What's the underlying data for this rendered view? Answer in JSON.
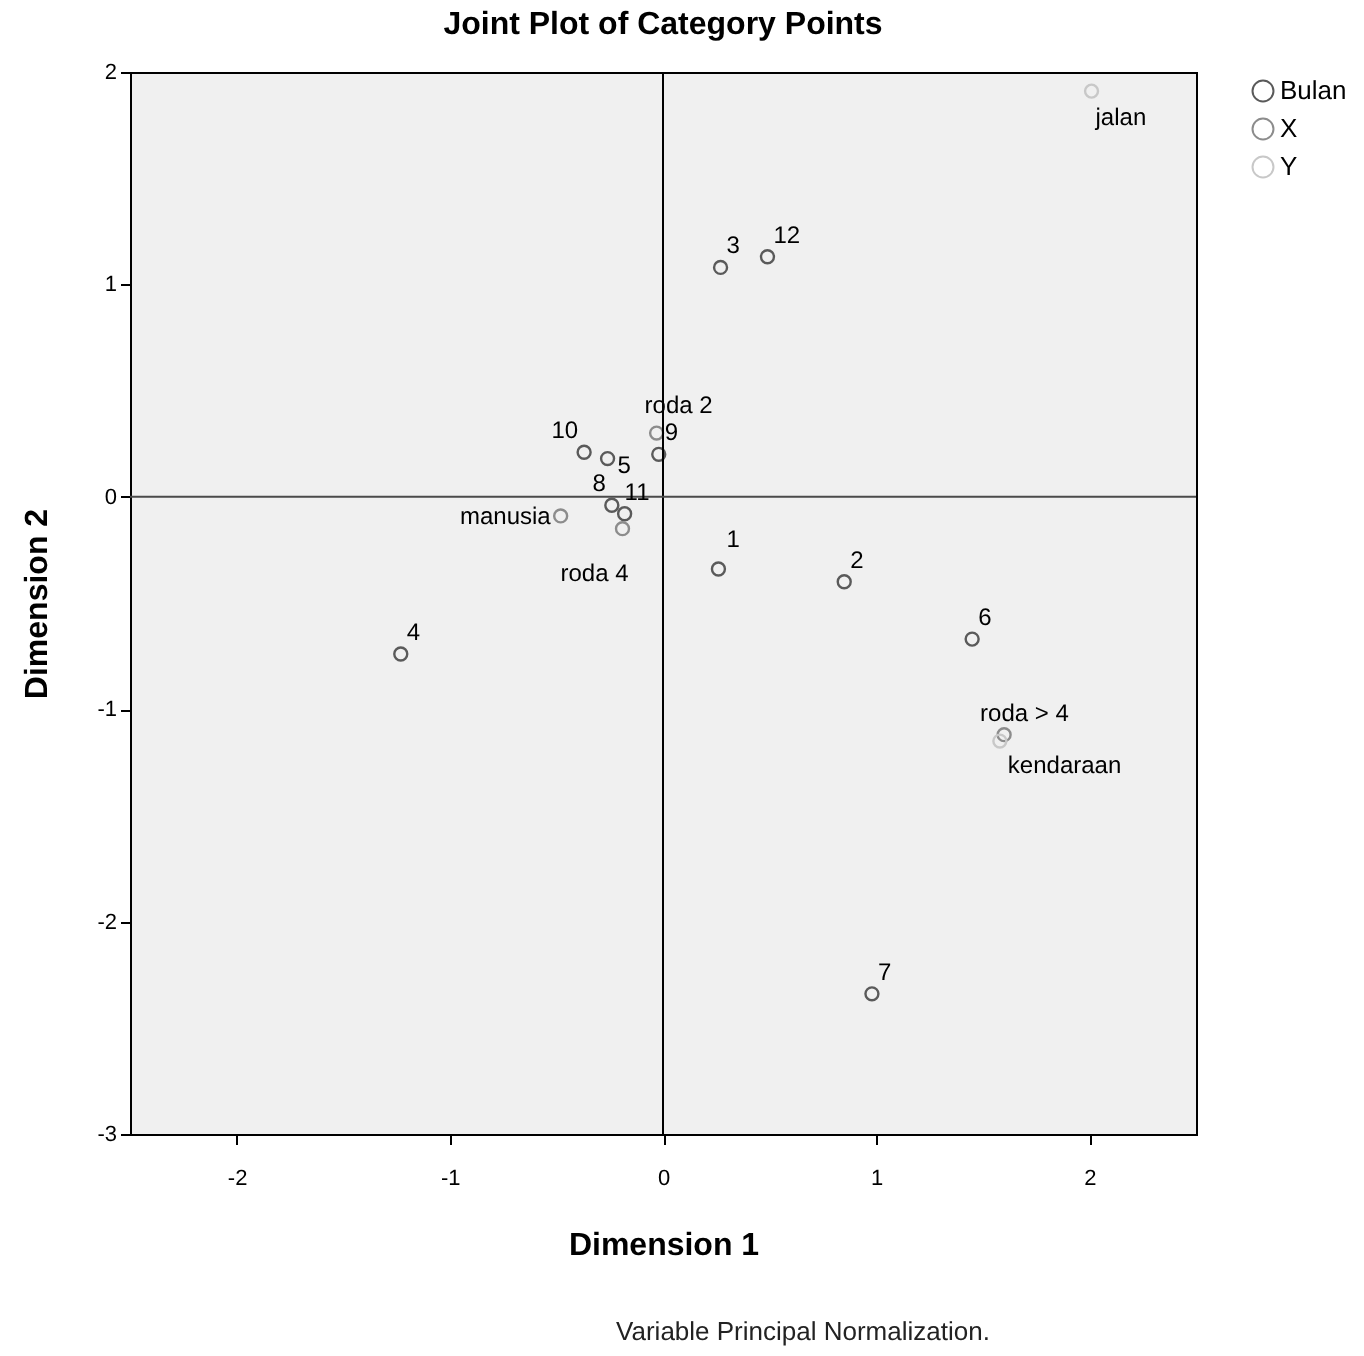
{
  "chart_data": {
    "type": "scatter",
    "title": "Joint Plot of Category Points",
    "xlabel": "Dimension 1",
    "ylabel": "Dimension 2",
    "series": [
      {
        "name": "Bulan",
        "color": "#5a5a5a",
        "x": [
          0.26,
          0.85,
          0.27,
          -1.23,
          -0.26,
          1.45,
          0.98,
          -0.24,
          -0.02,
          -0.37,
          -0.18,
          0.49
        ],
        "values": [
          -0.34,
          -0.4,
          1.08,
          -0.74,
          0.18,
          -0.67,
          -2.34,
          -0.04,
          0.2,
          0.21,
          -0.08,
          1.13
        ]
      },
      {
        "name": "X",
        "color": "#8c8c8c",
        "x": [
          -0.48,
          -0.03,
          -0.19,
          1.6
        ],
        "values": [
          -0.09,
          0.3,
          -0.15,
          -1.12
        ]
      },
      {
        "name": "Y",
        "color": "#c8c8c8",
        "x": [
          2.01,
          1.58
        ],
        "values": [
          1.91,
          -1.15
        ]
      }
    ],
    "xlim": [
      -2.5,
      2.5
    ],
    "ylim": [
      -3,
      2
    ],
    "xticks": [
      -2,
      -1,
      0,
      1,
      2
    ],
    "yticks": [
      -3,
      -2,
      -1,
      0,
      1,
      2
    ],
    "ref_lines": [
      {
        "axis": "x",
        "value": 0,
        "color": "#000000"
      },
      {
        "axis": "y",
        "value": 0,
        "color": "#4a4a4a"
      }
    ],
    "marker": "circle",
    "legend": "top right",
    "annotations": [
      {
        "text": "1",
        "x": 0.26,
        "y": -0.34
      },
      {
        "text": "2",
        "x": 0.85,
        "y": -0.4
      },
      {
        "text": "3",
        "x": 0.27,
        "y": 1.08
      },
      {
        "text": "4",
        "x": -1.23,
        "y": -0.74
      },
      {
        "text": "5",
        "x": -0.26,
        "y": 0.18
      },
      {
        "text": "6",
        "x": 1.45,
        "y": -0.67
      },
      {
        "text": "7",
        "x": 0.98,
        "y": -2.34
      },
      {
        "text": "8",
        "x": -0.24,
        "y": -0.04
      },
      {
        "text": "9",
        "x": -0.02,
        "y": 0.2
      },
      {
        "text": "10",
        "x": -0.37,
        "y": 0.21
      },
      {
        "text": "11",
        "x": -0.18,
        "y": -0.08
      },
      {
        "text": "12",
        "x": 0.49,
        "y": 1.13
      },
      {
        "text": "manusia",
        "x": -0.48,
        "y": -0.09
      },
      {
        "text": "roda 2",
        "x": -0.03,
        "y": 0.3
      },
      {
        "text": "roda 4",
        "x": -0.19,
        "y": -0.15
      },
      {
        "text": "roda > 4",
        "x": 1.6,
        "y": -1.12
      },
      {
        "text": "jalan",
        "x": 2.01,
        "y": 1.91
      },
      {
        "text": "kendaraan",
        "x": 1.58,
        "y": -1.15
      },
      "Variable Principal Normalization."
    ]
  }
}
